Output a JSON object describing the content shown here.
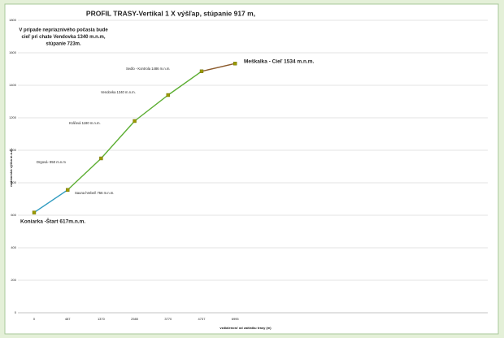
{
  "chart_data": {
    "type": "line",
    "title": "PROFIL TRASY-Vertikal  1 X výšľap, stúpanie 917 m,",
    "note": [
      "V prípade nepriaznivého počasia bude",
      "cieľ pri chate Vendovka 1340 m.n.m,",
      "stúpanie 723m."
    ],
    "x_label": "vzdialenosť od začiatku trasy (m)",
    "y_label": "nadmorská výška m.n.m.",
    "categories": [
      "0",
      "487",
      "1370",
      "2580",
      "3770",
      "4737",
      "6995"
    ],
    "series": [
      {
        "values": [
          617,
          756,
          950,
          1180,
          1340,
          1486,
          1534
        ],
        "marker_color": "#9a9a00",
        "segment_colors": [
          "#2f9bc0",
          "#5cae32",
          "#5cae32",
          "#5cae32",
          "#5cae32",
          "#8b5a2b"
        ]
      }
    ],
    "annotations": [
      "Koniarka -Štart 617m.n.m.",
      "Sauna hrebeň 756 m.n.m.",
      "Drgová- 950 m.n.m",
      "Kráľová 1180 m.n.m.",
      "Vendovka 1340 m.n.m.",
      "Sedlo - Kontrola 1486 m.n.m.",
      "Meškalka - Cieľ 1534 m.n.m."
    ],
    "ylim": [
      0,
      1800
    ],
    "yticks": [
      0,
      200,
      400,
      600,
      800,
      1000,
      1200,
      1400,
      1600,
      1800
    ],
    "grid": true
  }
}
